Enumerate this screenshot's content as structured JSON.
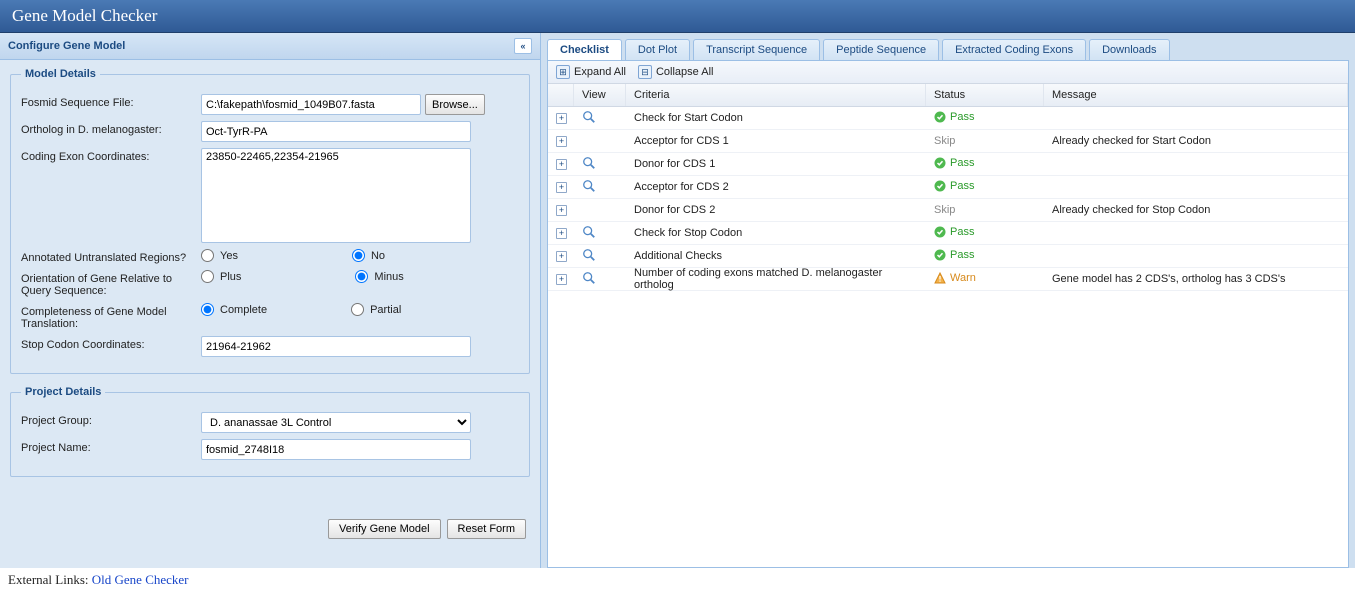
{
  "app_title": "Gene Model Checker",
  "left_panel": {
    "title": "Configure Gene Model",
    "model_details_legend": "Model Details",
    "project_details_legend": "Project Details",
    "labels": {
      "fosmid": "Fosmid Sequence File:",
      "ortholog": "Ortholog in D. melanogaster:",
      "coords": "Coding Exon Coordinates:",
      "utr": "Annotated Untranslated Regions?",
      "orientation": "Orientation of Gene Relative to Query Sequence:",
      "completeness": "Completeness of Gene Model Translation:",
      "stop": "Stop Codon Coordinates:",
      "project_group": "Project Group:",
      "project_name": "Project Name:"
    },
    "values": {
      "fosmid": "C:\\fakepath\\fosmid_1049B07.fasta",
      "ortholog": "Oct-TyrR-PA",
      "coords": "23850-22465,22354-21965",
      "stop": "21964-21962",
      "project_group": "D. ananassae 3L Control",
      "project_name": "fosmid_2748I18"
    },
    "radios": {
      "yes": "Yes",
      "no": "No",
      "plus": "Plus",
      "minus": "Minus",
      "complete": "Complete",
      "partial": "Partial",
      "utr_selected": "no",
      "orientation_selected": "minus",
      "completeness_selected": "complete"
    },
    "buttons": {
      "browse": "Browse...",
      "verify": "Verify Gene Model",
      "reset": "Reset Form"
    }
  },
  "right_panel": {
    "tabs": [
      "Checklist",
      "Dot Plot",
      "Transcript Sequence",
      "Peptide Sequence",
      "Extracted Coding Exons",
      "Downloads"
    ],
    "active_tab": 0,
    "toolbar": {
      "expand": "Expand All",
      "collapse": "Collapse All"
    },
    "columns": {
      "view": "View",
      "criteria": "Criteria",
      "status": "Status",
      "message": "Message"
    },
    "rows": [
      {
        "view": true,
        "criteria": "Check for Start Codon",
        "status": "pass",
        "status_label": "Pass",
        "message": ""
      },
      {
        "view": false,
        "criteria": "Acceptor for CDS 1",
        "status": "skip",
        "status_label": "Skip",
        "message": "Already checked for Start Codon"
      },
      {
        "view": true,
        "criteria": "Donor for CDS 1",
        "status": "pass",
        "status_label": "Pass",
        "message": ""
      },
      {
        "view": true,
        "criteria": "Acceptor for CDS 2",
        "status": "pass",
        "status_label": "Pass",
        "message": ""
      },
      {
        "view": false,
        "criteria": "Donor for CDS 2",
        "status": "skip",
        "status_label": "Skip",
        "message": "Already checked for Stop Codon"
      },
      {
        "view": true,
        "criteria": "Check for Stop Codon",
        "status": "pass",
        "status_label": "Pass",
        "message": ""
      },
      {
        "view": true,
        "criteria": "Additional Checks",
        "status": "pass",
        "status_label": "Pass",
        "message": ""
      },
      {
        "view": true,
        "criteria": "Number of coding exons matched D. melanogaster ortholog",
        "status": "warn",
        "status_label": "Warn",
        "message": "Gene model has 2 CDS's, ortholog has 3 CDS's"
      }
    ]
  },
  "external_links": {
    "label": "External Links: ",
    "link_text": "Old Gene Checker"
  },
  "colors": {
    "header_bg": "#3a6aa5",
    "panel_bg": "#dce8f4",
    "border": "#9cbfe5",
    "accent_text": "#1c4b82",
    "pass": "#2a9a2a",
    "warn": "#d78a1c",
    "skip": "#888888"
  }
}
